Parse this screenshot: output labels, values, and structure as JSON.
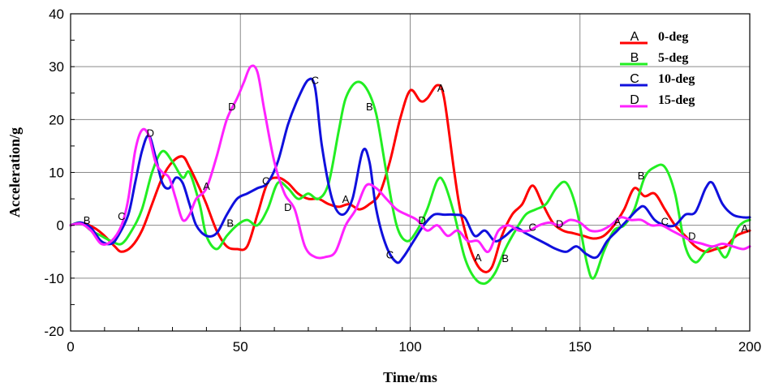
{
  "chart_data": {
    "type": "line",
    "xlabel": "Time/ms",
    "ylabel": "Acceleration/g",
    "xlim": [
      0,
      200
    ],
    "ylim": [
      -20,
      40
    ],
    "xticks": [
      0,
      50,
      100,
      150,
      200
    ],
    "yticks": [
      -20,
      -10,
      0,
      10,
      20,
      30,
      40
    ],
    "grid": true,
    "legend_position": "top-right",
    "colors": {
      "A": "#ff0000",
      "B": "#22ee22",
      "C": "#1010dd",
      "D": "#ff22ff"
    },
    "series": [
      {
        "key": "A",
        "name": "0-deg",
        "marker": "A",
        "x": [
          0,
          3,
          7,
          10,
          13,
          15,
          18,
          21,
          24,
          27,
          30,
          33,
          35,
          38,
          40,
          43,
          46,
          49,
          52,
          55,
          58,
          61,
          64,
          67,
          70,
          73,
          76,
          79,
          82,
          85,
          88,
          91,
          94,
          97,
          100,
          103,
          105,
          108,
          110,
          113,
          115,
          118,
          121,
          124,
          127,
          130,
          133,
          136,
          139,
          142,
          145,
          148,
          151,
          154,
          157,
          160,
          163,
          166,
          169,
          172,
          175,
          178,
          181,
          184,
          187,
          190,
          193,
          196,
          200
        ],
        "y": [
          0,
          0.5,
          -0.5,
          -2,
          -4,
          -5,
          -4,
          -1,
          4,
          9,
          12,
          13,
          11,
          7,
          4,
          -1,
          -4,
          -4.5,
          -4,
          2,
          8,
          9,
          8,
          6,
          5,
          5,
          4,
          3.5,
          4,
          3,
          4,
          6,
          12,
          20,
          25.5,
          23.5,
          24,
          26.5,
          24,
          10,
          2,
          -5,
          -8.5,
          -8,
          -2,
          2,
          4,
          7.5,
          4,
          0.5,
          -1,
          -1.5,
          -2,
          -2.5,
          -2,
          0,
          3,
          7,
          5.5,
          6,
          3,
          0,
          -2,
          -4,
          -5,
          -4.5,
          -4,
          -2,
          -1
        ]
      },
      {
        "key": "B",
        "name": "5-deg",
        "marker": "B",
        "x": [
          0,
          3,
          6,
          9,
          12,
          15,
          18,
          21,
          24,
          27,
          30,
          33,
          35,
          38,
          40,
          43,
          46,
          49,
          52,
          55,
          58,
          61,
          64,
          67,
          70,
          73,
          76,
          79,
          81,
          84,
          87,
          90,
          93,
          96,
          99,
          102,
          105,
          108,
          110,
          113,
          116,
          119,
          122,
          125,
          128,
          131,
          134,
          137,
          140,
          143,
          146,
          149,
          152,
          154,
          157,
          160,
          163,
          166,
          169,
          172,
          175,
          178,
          181,
          184,
          187,
          190,
          193,
          196,
          198,
          200
        ],
        "y": [
          0,
          0.5,
          -1,
          -2,
          -3,
          -3.5,
          -1,
          3,
          10,
          14,
          12,
          9,
          10,
          4,
          -2,
          -4.5,
          -2,
          0,
          1,
          0,
          3,
          8,
          7,
          5,
          6,
          5,
          8,
          18,
          24,
          27,
          26,
          21,
          10,
          0,
          -3,
          -1,
          3,
          8.5,
          8,
          2,
          -6,
          -10,
          -11,
          -9,
          -4.5,
          -1,
          2,
          3,
          4,
          7,
          8,
          3,
          -7,
          -10,
          -5,
          -1,
          0,
          3,
          9,
          11,
          11,
          6,
          -4,
          -7,
          -5,
          -4,
          -6,
          -1,
          0.5,
          1
        ]
      },
      {
        "key": "C",
        "name": "10-deg",
        "marker": "C",
        "x": [
          0,
          3,
          6,
          9,
          12,
          14,
          17,
          19,
          21,
          23,
          25,
          27,
          29,
          31,
          33,
          35,
          37,
          40,
          43,
          46,
          49,
          52,
          55,
          58,
          61,
          64,
          67,
          70,
          72,
          74,
          77,
          80,
          83,
          86,
          88,
          90,
          93,
          96,
          98,
          101,
          104,
          107,
          110,
          113,
          116,
          119,
          122,
          125,
          128,
          131,
          134,
          137,
          140,
          143,
          146,
          149,
          152,
          155,
          158,
          161,
          164,
          167,
          169,
          172,
          175,
          178,
          181,
          184,
          187,
          189,
          192,
          195,
          198,
          200
        ],
        "y": [
          0,
          0.5,
          -0.5,
          -3,
          -3.5,
          -2,
          2,
          8,
          14,
          17,
          13,
          8,
          7,
          9,
          8,
          4,
          0,
          -2,
          -1.5,
          2,
          5,
          6,
          7,
          8,
          12,
          19,
          24,
          27.5,
          26,
          15,
          5,
          2,
          5,
          14,
          12,
          3,
          -4,
          -7,
          -6,
          -3,
          0,
          2,
          2,
          2,
          1.5,
          -2,
          -1,
          -3,
          -2,
          -0.5,
          -1.5,
          -2.5,
          -3.5,
          -4.5,
          -5,
          -4,
          -5.5,
          -6,
          -3,
          -1,
          1,
          3,
          3.5,
          1,
          0,
          0,
          2,
          2.5,
          7,
          8,
          4,
          2,
          1.5,
          1.5
        ]
      },
      {
        "key": "D",
        "name": "15-deg",
        "marker": "D",
        "x": [
          0,
          3,
          6,
          9,
          12,
          15,
          17,
          19,
          21,
          23,
          25,
          27,
          29,
          31,
          33,
          35,
          37,
          40,
          43,
          46,
          49,
          51,
          53,
          55,
          57,
          60,
          63,
          66,
          69,
          72,
          75,
          78,
          81,
          84,
          87,
          90,
          93,
          96,
          99,
          102,
          105,
          108,
          111,
          114,
          117,
          120,
          123,
          126,
          129,
          132,
          135,
          138,
          141,
          144,
          147,
          150,
          153,
          156,
          159,
          162,
          165,
          168,
          171,
          174,
          177,
          180,
          183,
          186,
          189,
          192,
          195,
          198,
          200
        ],
        "y": [
          0,
          0.3,
          -1,
          -3.5,
          -3,
          0,
          5,
          14,
          18,
          17,
          12,
          10,
          9,
          5,
          1,
          2,
          5,
          7,
          13,
          20,
          24,
          27,
          30,
          29,
          22,
          12,
          6,
          3,
          -4,
          -6,
          -6,
          -5,
          0,
          3,
          7.5,
          7,
          5,
          3,
          2,
          1,
          -1,
          0,
          -2,
          -1,
          -3,
          -3,
          -5,
          -1,
          0,
          -1,
          -1,
          0,
          0.5,
          0,
          1,
          0.5,
          -1,
          -1,
          0,
          1.5,
          1,
          1,
          0,
          0,
          -1,
          -2,
          -3,
          -3.5,
          -4,
          -3.5,
          -4,
          -4.5,
          -4
        ]
      }
    ],
    "point_labels": [
      {
        "text": "B",
        "x": 4.8,
        "y": 1.0
      },
      {
        "text": "C",
        "x": 15,
        "y": 1.8
      },
      {
        "text": "D",
        "x": 23.5,
        "y": 17.5
      },
      {
        "text": "A",
        "x": 40,
        "y": 7.5
      },
      {
        "text": "B",
        "x": 47,
        "y": 0.5
      },
      {
        "text": "C",
        "x": 57.5,
        "y": 8.5
      },
      {
        "text": "D",
        "x": 64,
        "y": 3.5
      },
      {
        "text": "D",
        "x": 47.5,
        "y": 22.5
      },
      {
        "text": "C",
        "x": 72,
        "y": 27.5
      },
      {
        "text": "A",
        "x": 81,
        "y": 5
      },
      {
        "text": "B",
        "x": 88,
        "y": 22.5
      },
      {
        "text": "C",
        "x": 94,
        "y": -5.5
      },
      {
        "text": "A",
        "x": 109,
        "y": 26
      },
      {
        "text": "D",
        "x": 103.5,
        "y": 1.0
      },
      {
        "text": "A",
        "x": 120,
        "y": -6
      },
      {
        "text": "B",
        "x": 128,
        "y": -6.2
      },
      {
        "text": "C",
        "x": 136,
        "y": -0.3
      },
      {
        "text": "D",
        "x": 144,
        "y": 0.3
      },
      {
        "text": "A",
        "x": 161,
        "y": 0.8
      },
      {
        "text": "B",
        "x": 168,
        "y": 9.5
      },
      {
        "text": "C",
        "x": 175,
        "y": 0.8
      },
      {
        "text": "D",
        "x": 183,
        "y": -2
      },
      {
        "text": "A",
        "x": 198.5,
        "y": -0.5
      }
    ]
  }
}
